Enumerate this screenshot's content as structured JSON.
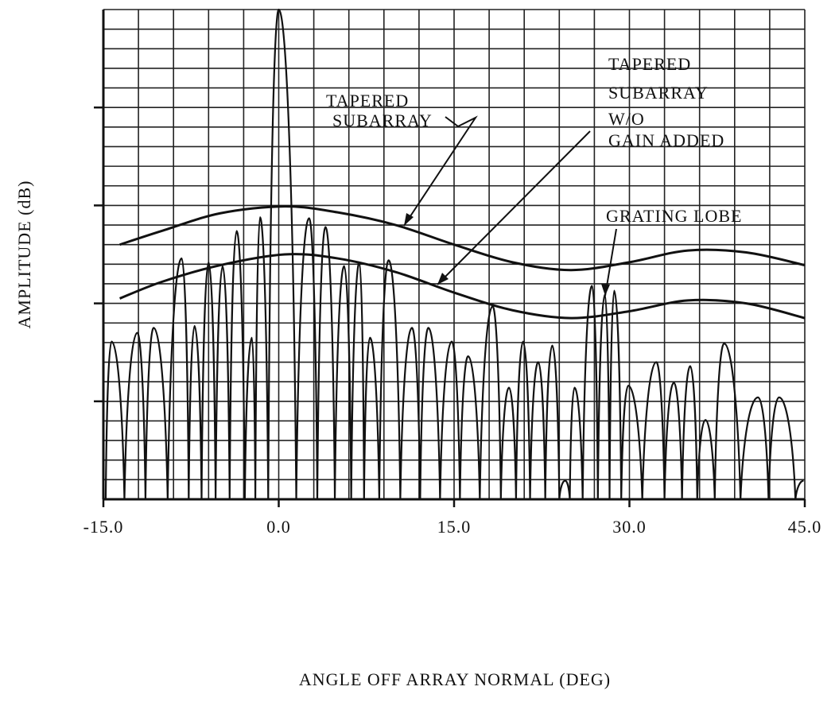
{
  "chart_data": {
    "type": "line",
    "xlabel": "ANGLE OFF ARRAY NORMAL (DEG)",
    "ylabel": "AMPLITUDE (dB)",
    "xlim": [
      -15,
      45
    ],
    "ylim": [
      0,
      50
    ],
    "xticks": [
      {
        "value": -15,
        "label": "-15.0"
      },
      {
        "value": 0,
        "label": "0.0"
      },
      {
        "value": 15,
        "label": "15.0"
      },
      {
        "value": 30,
        "label": "30.0"
      },
      {
        "value": 45,
        "label": "45.0"
      }
    ],
    "yticks": [
      10,
      20,
      30,
      40
    ],
    "grid": true,
    "xgrid": [
      -15,
      -12,
      -9,
      -6,
      -3,
      0,
      3,
      6,
      9,
      12,
      15,
      18,
      21,
      24,
      27,
      30,
      33,
      36,
      39,
      42,
      45
    ],
    "ygrid": [
      0,
      2,
      4,
      6,
      8,
      10,
      12,
      14,
      16,
      18,
      20,
      22,
      24,
      26,
      28,
      30,
      32,
      34,
      36,
      38,
      40,
      42,
      44,
      46,
      48,
      50
    ],
    "color": "#111111",
    "series": [
      {
        "x": [
          -14.8,
          -14.3,
          -13.2,
          -12.1,
          -11.4,
          -10.7,
          -9.5,
          -8.3,
          -7.7,
          -7.2,
          -6.6,
          -6.0,
          -5.4,
          -4.8,
          -4.2,
          -3.6,
          -2.9,
          -2.3,
          -2.0,
          -1.6,
          -0.9,
          0,
          1.5,
          2.6,
          3.3,
          4.0,
          4.8,
          5.6,
          6.2,
          6.9,
          7.3,
          7.8,
          8.6,
          9.4,
          10.4,
          11.4,
          12.1,
          12.8,
          13.8,
          14.8,
          15.5,
          16.2,
          17.2,
          18.3,
          19.0,
          19.7,
          20.3,
          20.9,
          21.5,
          22.2,
          22.8,
          23.4,
          24.0,
          24.5,
          24.9,
          25.3,
          26.0,
          26.8,
          27.3,
          27.9,
          28.3,
          28.7,
          29.3,
          29.9,
          31.1,
          32.3,
          33.0,
          33.8,
          34.5,
          35.2,
          35.8,
          36.5,
          37.3,
          38.1,
          39.5,
          41.0,
          41.9,
          42.8,
          44.2,
          44.9
        ],
        "values": [
          0,
          16.1,
          0,
          17.0,
          0,
          17.5,
          0,
          24.6,
          0,
          17.7,
          0,
          24.2,
          0,
          23.8,
          0,
          27.4,
          0,
          16.5,
          0,
          28.8,
          0,
          50,
          0,
          28.7,
          0,
          27.8,
          0,
          23.8,
          0,
          24.2,
          0,
          16.5,
          0,
          24.4,
          0,
          17.5,
          0,
          17.5,
          0,
          16.1,
          0,
          14.6,
          0,
          19.7,
          0,
          11.4,
          0,
          16.1,
          0,
          14.0,
          0,
          15.7,
          0,
          1.9,
          0,
          11.4,
          0,
          21.8,
          0,
          20.9,
          0,
          21.3,
          0,
          11.6,
          0,
          14.0,
          0,
          11.9,
          0,
          13.6,
          0,
          8.1,
          0,
          15.9,
          0,
          10.4,
          0,
          10.4,
          0,
          1.9
        ]
      },
      {
        "x": [
          -13.6,
          -10,
          -5,
          0.5,
          5,
          10,
          15,
          20,
          25,
          30,
          35,
          40,
          45
        ],
        "values": [
          26.0,
          27.4,
          29.2,
          29.9,
          29.3,
          28.0,
          26.0,
          24.2,
          23.4,
          24.2,
          25.4,
          25.2,
          23.9
        ]
      },
      {
        "x": [
          -13.6,
          -10,
          -5,
          0.5,
          5,
          10,
          15,
          20,
          25,
          30,
          35,
          40,
          45
        ],
        "values": [
          20.5,
          22.2,
          23.9,
          25.0,
          24.6,
          23.2,
          21.1,
          19.3,
          18.5,
          19.2,
          20.3,
          20.0,
          18.5
        ]
      }
    ],
    "annotations": [
      {
        "lines": [
          "TAPERED",
          "SUBARRAY"
        ]
      },
      {
        "lines": [
          "TAPERED",
          "SUBARRAY",
          "W/O",
          "GAIN ADDED"
        ]
      },
      {
        "lines": [
          "GRATING LOBE"
        ]
      }
    ]
  }
}
